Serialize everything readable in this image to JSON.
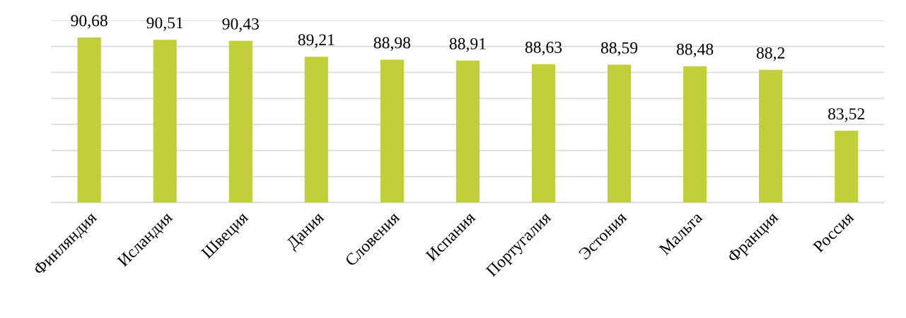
{
  "chart_data": {
    "type": "bar",
    "categories": [
      "Финляндия",
      "Исландия",
      "Швеция",
      "Дания",
      "Словения",
      "Испания",
      "Португалия",
      "Эстония",
      "Мальта",
      "Франция",
      "Россия"
    ],
    "values": [
      90.68,
      90.51,
      90.43,
      89.21,
      88.98,
      88.91,
      88.63,
      88.59,
      88.48,
      88.2,
      83.52
    ],
    "value_labels": [
      "90,68",
      "90,51",
      "90,43",
      "89,21",
      "88,98",
      "88,91",
      "88,63",
      "88,59",
      "88,48",
      "88,2",
      "83,52"
    ],
    "color": "#c0cf3a",
    "ylim": [
      78,
      92
    ],
    "yticks": [
      78,
      80,
      82,
      84,
      86,
      88,
      90,
      92
    ],
    "grid": "y",
    "tick_labels": "x"
  }
}
